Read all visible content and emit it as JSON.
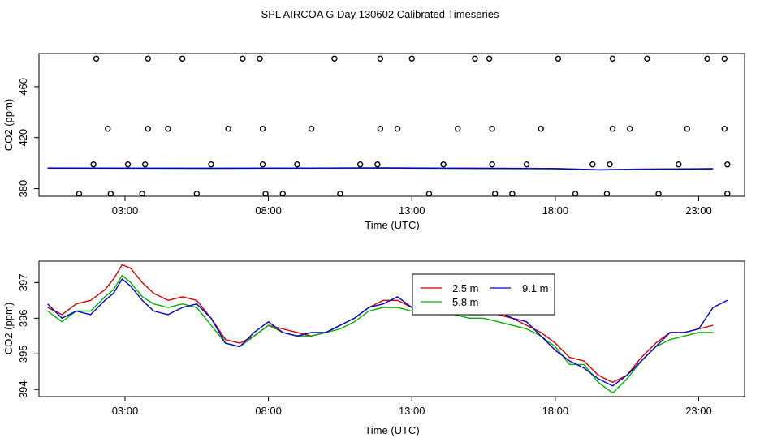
{
  "title": "SPL AIRCOA G  Day 130602  Calibrated Timeseries",
  "chart_data": [
    {
      "type": "scatter",
      "title": "SPL AIRCOA G  Day 130602  Calibrated Timeseries",
      "xlabel": "Time (UTC)",
      "ylabel": "CO2 (ppm)",
      "xlim": [
        0,
        24.6
      ],
      "ylim": [
        374,
        486
      ],
      "x_ticks": [
        3,
        8,
        13,
        18,
        23
      ],
      "x_tick_labels": [
        "03:00",
        "08:00",
        "13:00",
        "18:00",
        "23:00"
      ],
      "y_ticks": [
        380,
        420,
        460
      ],
      "y_tick_labels": [
        "380",
        "420",
        "460"
      ],
      "calibration_points": {
        "values": [
          {
            "x": 1.4,
            "y": 376
          },
          {
            "x": 2.5,
            "y": 376
          },
          {
            "x": 3.6,
            "y": 376
          },
          {
            "x": 5.5,
            "y": 376
          },
          {
            "x": 7.9,
            "y": 376
          },
          {
            "x": 8.5,
            "y": 376
          },
          {
            "x": 10.5,
            "y": 376
          },
          {
            "x": 13.6,
            "y": 376
          },
          {
            "x": 15.9,
            "y": 376
          },
          {
            "x": 16.5,
            "y": 376
          },
          {
            "x": 18.7,
            "y": 376
          },
          {
            "x": 19.8,
            "y": 376
          },
          {
            "x": 21.6,
            "y": 376
          },
          {
            "x": 24.0,
            "y": 376
          },
          {
            "x": 1.9,
            "y": 399
          },
          {
            "x": 3.1,
            "y": 399
          },
          {
            "x": 3.7,
            "y": 399
          },
          {
            "x": 6.0,
            "y": 399
          },
          {
            "x": 7.8,
            "y": 399
          },
          {
            "x": 9.0,
            "y": 399
          },
          {
            "x": 11.2,
            "y": 399
          },
          {
            "x": 11.8,
            "y": 399
          },
          {
            "x": 14.1,
            "y": 399
          },
          {
            "x": 15.8,
            "y": 399
          },
          {
            "x": 17.0,
            "y": 399
          },
          {
            "x": 19.3,
            "y": 399
          },
          {
            "x": 19.9,
            "y": 399
          },
          {
            "x": 22.3,
            "y": 399
          },
          {
            "x": 24.0,
            "y": 399
          },
          {
            "x": 2.4,
            "y": 427
          },
          {
            "x": 3.8,
            "y": 427
          },
          {
            "x": 4.5,
            "y": 427
          },
          {
            "x": 6.6,
            "y": 427
          },
          {
            "x": 7.8,
            "y": 427
          },
          {
            "x": 9.5,
            "y": 427
          },
          {
            "x": 11.9,
            "y": 427
          },
          {
            "x": 12.5,
            "y": 427
          },
          {
            "x": 14.6,
            "y": 427
          },
          {
            "x": 15.8,
            "y": 427
          },
          {
            "x": 17.5,
            "y": 427
          },
          {
            "x": 20.0,
            "y": 427
          },
          {
            "x": 20.6,
            "y": 427
          },
          {
            "x": 22.6,
            "y": 427
          },
          {
            "x": 23.9,
            "y": 427
          },
          {
            "x": 2.0,
            "y": 482
          },
          {
            "x": 3.8,
            "y": 482
          },
          {
            "x": 5.0,
            "y": 482
          },
          {
            "x": 7.1,
            "y": 482
          },
          {
            "x": 7.7,
            "y": 482
          },
          {
            "x": 10.3,
            "y": 482
          },
          {
            "x": 11.9,
            "y": 482
          },
          {
            "x": 13.0,
            "y": 482
          },
          {
            "x": 15.2,
            "y": 482
          },
          {
            "x": 15.7,
            "y": 482
          },
          {
            "x": 18.1,
            "y": 482
          },
          {
            "x": 20.0,
            "y": 482
          },
          {
            "x": 21.2,
            "y": 482
          },
          {
            "x": 23.3,
            "y": 482
          },
          {
            "x": 23.9,
            "y": 482
          }
        ]
      },
      "series": [
        {
          "name": "2.5 m",
          "color": "#d00000",
          "points": [
            [
              0.3,
              396.2
            ],
            [
              6,
              396.0
            ],
            [
              12,
              396.3
            ],
            [
              18,
              395.8
            ],
            [
              19.5,
              394.9
            ],
            [
              21,
              395.3
            ],
            [
              23.5,
              395.7
            ]
          ]
        },
        {
          "name": "5.8 m",
          "color": "#00b000",
          "points": [
            [
              0.3,
              396.0
            ],
            [
              6,
              395.9
            ],
            [
              12,
              396.1
            ],
            [
              18,
              395.6
            ],
            [
              19.5,
              394.8
            ],
            [
              21,
              395.2
            ],
            [
              23.5,
              395.6
            ]
          ]
        },
        {
          "name": "9.1 m",
          "color": "#0000c8",
          "points": [
            [
              0.3,
              396.1
            ],
            [
              6,
              396.0
            ],
            [
              12,
              396.2
            ],
            [
              18,
              395.7
            ],
            [
              19.5,
              394.7
            ],
            [
              21,
              395.1
            ],
            [
              23.5,
              395.6
            ]
          ]
        }
      ]
    },
    {
      "type": "line",
      "title": "",
      "xlabel": "Time (UTC)",
      "ylabel": "CO2 (ppm)",
      "xlim": [
        0,
        24.6
      ],
      "ylim": [
        393.8,
        397.6
      ],
      "x_ticks": [
        3,
        8,
        13,
        18,
        23
      ],
      "x_tick_labels": [
        "03:00",
        "08:00",
        "13:00",
        "18:00",
        "23:00"
      ],
      "y_ticks": [
        394,
        395,
        396,
        397
      ],
      "y_tick_labels": [
        "394",
        "395",
        "396",
        "397"
      ],
      "legend": {
        "position": "top-center",
        "entries": [
          "2.5 m",
          "9.1 m",
          "5.8 m"
        ]
      },
      "series": [
        {
          "name": "2.5 m",
          "color": "#d00000",
          "x": [
            0.3,
            0.8,
            1.3,
            1.8,
            2.3,
            2.6,
            2.9,
            3.2,
            3.6,
            4.0,
            4.5,
            5.0,
            5.5,
            6.0,
            6.5,
            7.0,
            7.5,
            8.0,
            8.5,
            9.0,
            9.5,
            10.0,
            10.5,
            11.0,
            11.5,
            12.0,
            12.5,
            13.0,
            13.5,
            14.0,
            14.5,
            15.0,
            15.5,
            16.0,
            16.5,
            17.0,
            17.5,
            18.0,
            18.5,
            19.0,
            19.5,
            20.0,
            20.5,
            21.0,
            21.5,
            22.0,
            22.5,
            23.0,
            23.5
          ],
          "y": [
            396.3,
            396.1,
            396.4,
            396.5,
            396.8,
            397.1,
            397.5,
            397.4,
            397.0,
            396.7,
            396.5,
            396.6,
            396.5,
            396.0,
            395.4,
            395.3,
            395.5,
            395.8,
            395.7,
            395.6,
            395.5,
            395.6,
            395.8,
            396.0,
            396.3,
            396.5,
            396.5,
            396.3,
            396.4,
            396.2,
            396.3,
            396.1,
            396.2,
            396.1,
            396.0,
            395.8,
            395.6,
            395.3,
            394.9,
            394.8,
            394.4,
            394.2,
            394.4,
            394.9,
            395.3,
            395.6,
            395.6,
            395.7,
            395.8
          ]
        },
        {
          "name": "5.8 m",
          "color": "#00b000",
          "x": [
            0.3,
            0.8,
            1.3,
            1.8,
            2.3,
            2.6,
            2.9,
            3.2,
            3.6,
            4.0,
            4.5,
            5.0,
            5.5,
            6.0,
            6.5,
            7.0,
            7.5,
            8.0,
            8.5,
            9.0,
            9.5,
            10.0,
            10.5,
            11.0,
            11.5,
            12.0,
            12.5,
            13.0,
            13.5,
            14.0,
            14.5,
            15.0,
            15.5,
            16.0,
            16.5,
            17.0,
            17.5,
            18.0,
            18.5,
            19.0,
            19.5,
            20.0,
            20.5,
            21.0,
            21.5,
            22.0,
            22.5,
            23.0,
            23.5
          ],
          "y": [
            396.2,
            395.9,
            396.2,
            396.2,
            396.6,
            396.8,
            397.2,
            397.0,
            396.6,
            396.4,
            396.3,
            396.4,
            396.3,
            395.8,
            395.3,
            395.2,
            395.5,
            395.8,
            395.6,
            395.5,
            395.5,
            395.6,
            395.7,
            395.9,
            396.2,
            396.3,
            396.3,
            396.2,
            396.3,
            396.1,
            396.1,
            396.0,
            396.0,
            395.9,
            395.8,
            395.7,
            395.5,
            395.2,
            394.7,
            394.7,
            394.2,
            393.9,
            394.3,
            394.8,
            395.2,
            395.4,
            395.5,
            395.6,
            395.6
          ]
        },
        {
          "name": "9.1 m",
          "color": "#0000c8",
          "x": [
            0.3,
            0.8,
            1.3,
            1.8,
            2.3,
            2.6,
            2.9,
            3.2,
            3.6,
            4.0,
            4.5,
            5.0,
            5.5,
            6.0,
            6.5,
            7.0,
            7.5,
            8.0,
            8.5,
            9.0,
            9.5,
            10.0,
            10.5,
            11.0,
            11.5,
            12.0,
            12.5,
            13.0,
            13.5,
            14.0,
            14.5,
            15.0,
            15.5,
            16.0,
            16.5,
            17.0,
            17.5,
            18.0,
            18.5,
            19.0,
            19.5,
            20.0,
            20.5,
            21.0,
            21.5,
            22.0,
            22.5,
            23.0,
            23.5,
            24.0
          ],
          "y": [
            396.4,
            396.0,
            396.2,
            396.1,
            396.5,
            396.7,
            397.1,
            396.9,
            396.5,
            396.2,
            396.1,
            396.3,
            396.4,
            396.0,
            395.3,
            395.2,
            395.6,
            395.9,
            395.6,
            395.5,
            395.6,
            395.6,
            395.8,
            396.0,
            396.3,
            396.4,
            396.6,
            396.3,
            396.4,
            396.2,
            396.2,
            396.1,
            396.1,
            396.2,
            396.0,
            395.9,
            395.5,
            395.1,
            394.8,
            394.6,
            394.3,
            394.1,
            394.4,
            394.8,
            395.2,
            395.6,
            395.6,
            395.7,
            396.3,
            396.5
          ]
        }
      ]
    }
  ]
}
